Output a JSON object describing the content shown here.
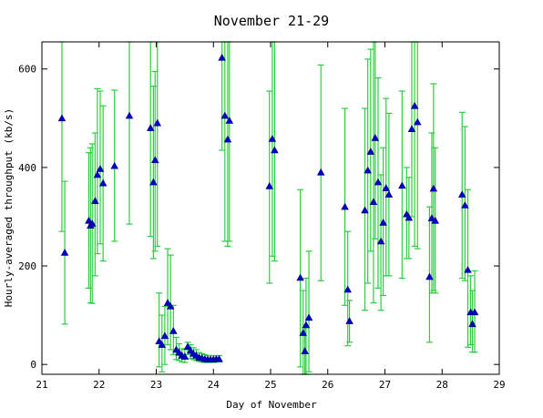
{
  "chart_data": {
    "type": "scatter",
    "title": "November 21-29",
    "xlabel": "Day of November",
    "ylabel": "Hourly-averaged throughput (kb/s)",
    "xlim": [
      21,
      29
    ],
    "ylim": [
      -20,
      655
    ],
    "xticks": [
      21,
      22,
      23,
      24,
      25,
      26,
      27,
      28,
      29
    ],
    "xtick_labels": [
      "21",
      "22",
      "23",
      "24",
      "25",
      "26",
      "27",
      "28",
      "29"
    ],
    "yticks": [
      0,
      200,
      400,
      600
    ],
    "ytick_labels": [
      "0",
      "200",
      "400",
      "600"
    ],
    "grid": false,
    "legend": "none",
    "colors": {
      "marker_fill": "#0000cc",
      "marker_edge": "#00008b",
      "error_bar": "#2ecc40",
      "axis": "#000000"
    },
    "points": [
      {
        "x": 21.35,
        "y": 500,
        "lo": 270,
        "hi": 655
      },
      {
        "x": 21.4,
        "y": 227,
        "lo": 82,
        "hi": 372
      },
      {
        "x": 21.82,
        "y": 292,
        "lo": 155,
        "hi": 430
      },
      {
        "x": 21.85,
        "y": 282,
        "lo": 125,
        "hi": 440
      },
      {
        "x": 21.88,
        "y": 286,
        "lo": 124,
        "hi": 448
      },
      {
        "x": 21.93,
        "y": 332,
        "lo": 180,
        "hi": 470
      },
      {
        "x": 21.97,
        "y": 385,
        "lo": 225,
        "hi": 560
      },
      {
        "x": 22.02,
        "y": 397,
        "lo": 245,
        "hi": 555
      },
      {
        "x": 22.07,
        "y": 368,
        "lo": 210,
        "hi": 525
      },
      {
        "x": 22.27,
        "y": 403,
        "lo": 250,
        "hi": 557
      },
      {
        "x": 22.53,
        "y": 505,
        "lo": 285,
        "hi": 655
      },
      {
        "x": 22.9,
        "y": 480,
        "lo": 260,
        "hi": 655
      },
      {
        "x": 22.95,
        "y": 370,
        "lo": 215,
        "hi": 565
      },
      {
        "x": 22.98,
        "y": 415,
        "lo": 230,
        "hi": 595
      },
      {
        "x": 23.02,
        "y": 490,
        "lo": 240,
        "hi": 655
      },
      {
        "x": 23.05,
        "y": 47,
        "lo": -5,
        "hi": 145
      },
      {
        "x": 23.1,
        "y": 40,
        "lo": -15,
        "hi": 100
      },
      {
        "x": 23.15,
        "y": 58,
        "lo": 0,
        "hi": 118
      },
      {
        "x": 23.2,
        "y": 125,
        "lo": 40,
        "hi": 235
      },
      {
        "x": 23.25,
        "y": 118,
        "lo": 30,
        "hi": 222
      },
      {
        "x": 23.3,
        "y": 68,
        "lo": 20,
        "hi": 120
      },
      {
        "x": 23.35,
        "y": 30,
        "lo": 10,
        "hi": 55
      },
      {
        "x": 23.4,
        "y": 24,
        "lo": 8,
        "hi": 42
      },
      {
        "x": 23.45,
        "y": 18,
        "lo": 5,
        "hi": 32
      },
      {
        "x": 23.5,
        "y": 16,
        "lo": 4,
        "hi": 30
      },
      {
        "x": 23.55,
        "y": 36,
        "lo": 20,
        "hi": 45
      },
      {
        "x": 23.6,
        "y": 28,
        "lo": 12,
        "hi": 40
      },
      {
        "x": 23.65,
        "y": 22,
        "lo": 10,
        "hi": 34
      },
      {
        "x": 23.7,
        "y": 18,
        "lo": 8,
        "hi": 30
      },
      {
        "x": 23.75,
        "y": 14,
        "lo": 6,
        "hi": 24
      },
      {
        "x": 23.8,
        "y": 13,
        "lo": 5,
        "hi": 22
      },
      {
        "x": 23.85,
        "y": 11,
        "lo": 4,
        "hi": 20
      },
      {
        "x": 23.9,
        "y": 10,
        "lo": 4,
        "hi": 18
      },
      {
        "x": 23.95,
        "y": 10,
        "lo": 4,
        "hi": 18
      },
      {
        "x": 24.0,
        "y": 10,
        "lo": 4,
        "hi": 18
      },
      {
        "x": 24.05,
        "y": 11,
        "lo": 5,
        "hi": 18
      },
      {
        "x": 24.1,
        "y": 11,
        "lo": 5,
        "hi": 18
      },
      {
        "x": 24.15,
        "y": 623,
        "lo": 435,
        "hi": 655
      },
      {
        "x": 24.2,
        "y": 505,
        "lo": 250,
        "hi": 655
      },
      {
        "x": 24.25,
        "y": 457,
        "lo": 240,
        "hi": 655
      },
      {
        "x": 24.28,
        "y": 495,
        "lo": 250,
        "hi": 655
      },
      {
        "x": 24.98,
        "y": 362,
        "lo": 165,
        "hi": 555
      },
      {
        "x": 25.03,
        "y": 458,
        "lo": 220,
        "hi": 655
      },
      {
        "x": 25.07,
        "y": 435,
        "lo": 210,
        "hi": 655
      },
      {
        "x": 25.52,
        "y": 176,
        "lo": -5,
        "hi": 355
      },
      {
        "x": 25.57,
        "y": 64,
        "lo": -20,
        "hi": 150
      },
      {
        "x": 25.6,
        "y": 27,
        "lo": -20,
        "hi": 75
      },
      {
        "x": 25.62,
        "y": 80,
        "lo": -20,
        "hi": 175
      },
      {
        "x": 25.67,
        "y": 95,
        "lo": -15,
        "hi": 230
      },
      {
        "x": 25.88,
        "y": 390,
        "lo": 170,
        "hi": 608
      },
      {
        "x": 26.3,
        "y": 320,
        "lo": 120,
        "hi": 520
      },
      {
        "x": 26.35,
        "y": 152,
        "lo": 38,
        "hi": 270
      },
      {
        "x": 26.38,
        "y": 88,
        "lo": 45,
        "hi": 130
      },
      {
        "x": 26.65,
        "y": 313,
        "lo": 110,
        "hi": 520
      },
      {
        "x": 26.7,
        "y": 394,
        "lo": 165,
        "hi": 620
      },
      {
        "x": 26.75,
        "y": 432,
        "lo": 230,
        "hi": 640
      },
      {
        "x": 26.8,
        "y": 330,
        "lo": 125,
        "hi": 655
      },
      {
        "x": 26.83,
        "y": 460,
        "lo": 255,
        "hi": 655
      },
      {
        "x": 26.88,
        "y": 370,
        "lo": 155,
        "hi": 582
      },
      {
        "x": 26.93,
        "y": 250,
        "lo": 110,
        "hi": 385
      },
      {
        "x": 26.97,
        "y": 288,
        "lo": 140,
        "hi": 440
      },
      {
        "x": 27.02,
        "y": 358,
        "lo": 180,
        "hi": 540
      },
      {
        "x": 27.07,
        "y": 345,
        "lo": 180,
        "hi": 510
      },
      {
        "x": 27.3,
        "y": 363,
        "lo": 175,
        "hi": 555
      },
      {
        "x": 27.38,
        "y": 305,
        "lo": 215,
        "hi": 400
      },
      {
        "x": 27.42,
        "y": 298,
        "lo": 215,
        "hi": 380
      },
      {
        "x": 27.47,
        "y": 478,
        "lo": 300,
        "hi": 655
      },
      {
        "x": 27.52,
        "y": 525,
        "lo": 240,
        "hi": 655
      },
      {
        "x": 27.57,
        "y": 492,
        "lo": 235,
        "hi": 655
      },
      {
        "x": 27.78,
        "y": 178,
        "lo": 45,
        "hi": 320
      },
      {
        "x": 27.82,
        "y": 297,
        "lo": 145,
        "hi": 470
      },
      {
        "x": 27.85,
        "y": 357,
        "lo": 150,
        "hi": 570
      },
      {
        "x": 27.88,
        "y": 292,
        "lo": 145,
        "hi": 440
      },
      {
        "x": 28.35,
        "y": 345,
        "lo": 175,
        "hi": 512
      },
      {
        "x": 28.4,
        "y": 323,
        "lo": 170,
        "hi": 483
      },
      {
        "x": 28.45,
        "y": 192,
        "lo": 35,
        "hi": 355
      },
      {
        "x": 28.5,
        "y": 106,
        "lo": 40,
        "hi": 180
      },
      {
        "x": 28.53,
        "y": 82,
        "lo": 25,
        "hi": 150
      },
      {
        "x": 28.57,
        "y": 106,
        "lo": 25,
        "hi": 190
      }
    ]
  }
}
